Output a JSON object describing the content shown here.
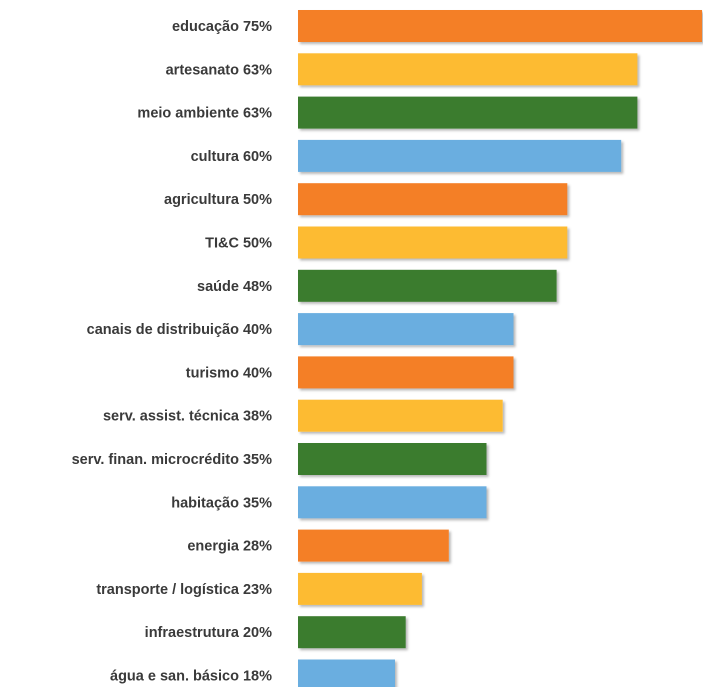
{
  "chart_data": {
    "type": "bar",
    "orientation": "horizontal",
    "title": "",
    "xlabel": "",
    "ylabel": "",
    "xlim": [
      0,
      75
    ],
    "grid": false,
    "legend": "none",
    "colors": [
      "#f47f26",
      "#fdbb30",
      "#3b7b2e",
      "#6aaee0"
    ],
    "categories": [
      "educação 75%",
      "artesanato 63%",
      "meio ambiente 63%",
      "cultura 60%",
      "agricultura 50%",
      "TI&C 50%",
      "saúde 48%",
      "canais de distribuição 40%",
      "turismo 40%",
      "serv. assist. técnica 38%",
      "serv. finan. microcrédito 35%",
      "habitação 35%",
      "energia 28%",
      "transporte / logística 23%",
      "infraestrutura 20%",
      "água e san. básico 18%"
    ],
    "values": [
      75,
      63,
      63,
      60,
      50,
      50,
      48,
      40,
      40,
      38,
      35,
      35,
      28,
      23,
      20,
      18
    ]
  }
}
